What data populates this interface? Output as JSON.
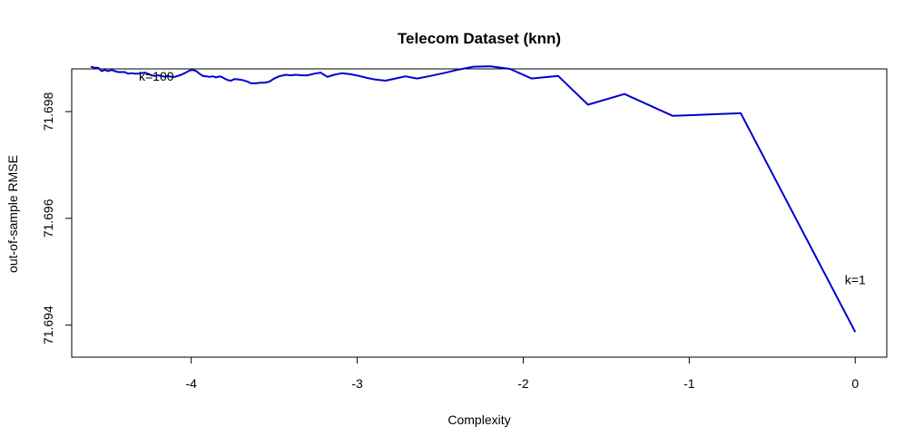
{
  "chart_data": {
    "type": "line",
    "title": "Telecom Dataset (knn)",
    "xlabel": "Complexity",
    "ylabel": "out-of-sample RMSE",
    "xlim": [
      -4.72,
      0.19
    ],
    "ylim": [
      71.6934,
      71.6988
    ],
    "x_ticks": [
      -4,
      -3,
      -2,
      -1,
      0
    ],
    "x_tick_labels": [
      "-4",
      "-3",
      "-2",
      "-1",
      "0"
    ],
    "y_ticks": [
      71.694,
      71.696,
      71.698
    ],
    "y_tick_labels": [
      "71.694",
      "71.696",
      "71.698"
    ],
    "grid": false,
    "line_color": "#0000cc",
    "annotations": [
      {
        "text": "k=100",
        "x": -4.21,
        "y": 71.69858
      },
      {
        "text": "k=1",
        "x": 0.0,
        "y": 71.69477
      }
    ],
    "series": [
      {
        "x": [
          -4.605,
          -4.58,
          -4.56,
          -4.54,
          -4.52,
          -4.5,
          -4.48,
          -4.46,
          -4.44,
          -4.42,
          -4.4,
          -4.38,
          -4.36,
          -4.34,
          -4.32,
          -4.3,
          -4.28,
          -4.26,
          -4.24,
          -4.22,
          -4.2,
          -4.18,
          -4.16,
          -4.14,
          -4.12,
          -4.1,
          -4.08,
          -4.06,
          -4.04,
          -4.01,
          -3.99,
          -3.97,
          -3.95,
          -3.93,
          -3.91,
          -3.89,
          -3.87,
          -3.85,
          -3.83,
          -3.81,
          -3.8,
          -3.78,
          -3.76,
          -3.74,
          -3.71,
          -3.69,
          -3.66,
          -3.64,
          -3.61,
          -3.58,
          -3.56,
          -3.53,
          -3.5,
          -3.47,
          -3.43,
          -3.4,
          -3.37,
          -3.33,
          -3.3,
          -3.26,
          -3.22,
          -3.18,
          -3.14,
          -3.09,
          -3.04,
          -2.99,
          -2.94,
          -2.89,
          -2.83,
          -2.77,
          -2.71,
          -2.64,
          -2.57,
          -2.48,
          -2.4,
          -2.3,
          -2.2,
          -2.08,
          -1.95,
          -1.79,
          -1.61,
          -1.39,
          -1.1,
          -0.69,
          0.0
        ],
        "y": [
          71.69884,
          71.69882,
          71.69882,
          71.69876,
          71.69878,
          71.69876,
          71.69878,
          71.69876,
          71.69874,
          71.69874,
          71.69874,
          71.69871,
          71.69872,
          71.69871,
          71.69871,
          71.69872,
          71.69873,
          71.69871,
          71.69868,
          71.69867,
          71.69868,
          71.69867,
          71.69865,
          71.69867,
          71.69865,
          71.69865,
          71.69867,
          71.69869,
          71.69872,
          71.69877,
          71.69878,
          71.69876,
          71.69871,
          71.69867,
          71.69866,
          71.69865,
          71.69866,
          71.69864,
          71.69866,
          71.69864,
          71.69862,
          71.69859,
          71.69858,
          71.69861,
          71.6986,
          71.69859,
          71.69856,
          71.69853,
          71.69853,
          71.69854,
          71.69854,
          71.69856,
          71.69862,
          71.69866,
          71.69869,
          71.69868,
          71.69869,
          71.69868,
          71.69868,
          71.69871,
          71.69873,
          71.69865,
          71.69869,
          71.69872,
          71.6987,
          71.69867,
          71.69863,
          71.6986,
          71.69858,
          71.69862,
          71.69866,
          71.69862,
          71.69866,
          71.69872,
          71.69878,
          71.69884,
          71.69885,
          71.6988,
          71.69862,
          71.69867,
          71.69813,
          71.69833,
          71.69792,
          71.69797,
          71.69387
        ]
      }
    ]
  }
}
